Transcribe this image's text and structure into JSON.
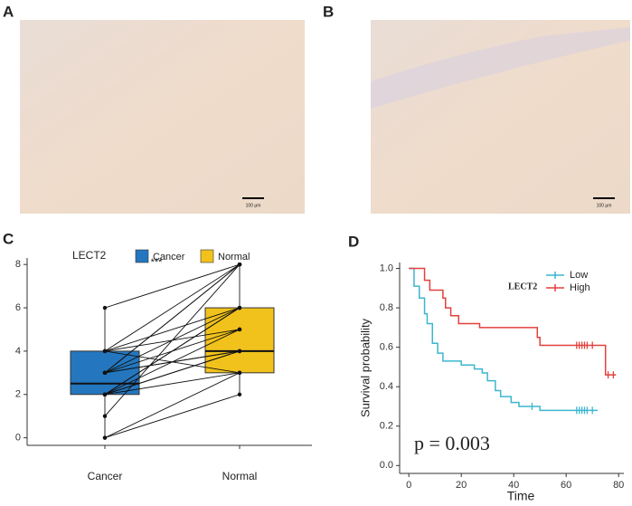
{
  "panel_labels": [
    "A",
    "B",
    "C",
    "D"
  ],
  "images": [
    {
      "scale_bar": "100 μm"
    },
    {
      "scale_bar": "100 μm"
    }
  ],
  "chart_data": [
    {
      "type": "box_paired",
      "legend_title": "LECT2",
      "categories": [
        "Cancer",
        "Normal"
      ],
      "colors": [
        "#2477bf",
        "#f1c21b"
      ],
      "annotation": "***",
      "boxes": [
        {
          "min": 0,
          "q1": 2,
          "median": 2.5,
          "q3": 4,
          "max": 6
        },
        {
          "min": 2,
          "q1": 3,
          "median": 4,
          "q3": 6,
          "max": 8
        }
      ],
      "pairs": {
        "cancer": [
          6,
          4,
          4,
          3,
          3,
          3,
          3,
          2,
          2,
          2,
          2,
          1,
          0,
          4,
          3,
          2,
          3,
          4,
          0,
          2
        ],
        "normal": [
          8,
          8,
          6,
          8,
          6,
          5,
          4,
          4,
          6,
          3,
          5,
          8,
          2,
          3,
          8,
          6,
          4,
          5,
          3,
          4
        ]
      },
      "ylim": [
        -0.35,
        8.3
      ],
      "yticks": [
        0,
        2,
        4,
        6,
        8
      ]
    },
    {
      "type": "km",
      "legend_title": "LECT2",
      "xlabel": "Time",
      "ylabel": "Survival probability",
      "annotation": "p = 0.003",
      "series": [
        {
          "name": "Low",
          "color": "#3cb6cf",
          "x": [
            0,
            2,
            4,
            6,
            7,
            9,
            11,
            13,
            20,
            25,
            28,
            30,
            33,
            35,
            39,
            42,
            50,
            72
          ],
          "values": [
            1,
            0.91,
            0.85,
            0.77,
            0.72,
            0.62,
            0.57,
            0.53,
            0.51,
            0.49,
            0.47,
            0.43,
            0.38,
            0.35,
            0.32,
            0.3,
            0.28,
            0.28
          ],
          "censor_x": [
            47,
            64,
            65,
            66,
            67,
            68,
            70
          ]
        },
        {
          "name": "High",
          "color": "#e2413d",
          "x": [
            0,
            6,
            8,
            13,
            14,
            16,
            19,
            27,
            49,
            50,
            75,
            79
          ],
          "values": [
            1,
            0.94,
            0.89,
            0.85,
            0.8,
            0.76,
            0.72,
            0.7,
            0.65,
            0.61,
            0.46,
            0.46
          ],
          "censor_x": [
            64,
            65,
            66,
            67,
            68,
            70,
            76,
            78
          ]
        }
      ],
      "xlim": [
        -3.5,
        82
      ],
      "xticks": [
        0,
        20,
        40,
        60,
        80
      ],
      "ylim": [
        -0.04,
        1.03
      ],
      "yticks": [
        {
          "value": 0,
          "label": "0.0"
        },
        {
          "value": 0.2,
          "label": "0.2"
        },
        {
          "value": 0.4,
          "label": "0.4"
        },
        {
          "value": 0.6,
          "label": "0.6"
        },
        {
          "value": 0.8,
          "label": "0.8"
        },
        {
          "value": 1,
          "label": "1.0"
        }
      ]
    }
  ]
}
